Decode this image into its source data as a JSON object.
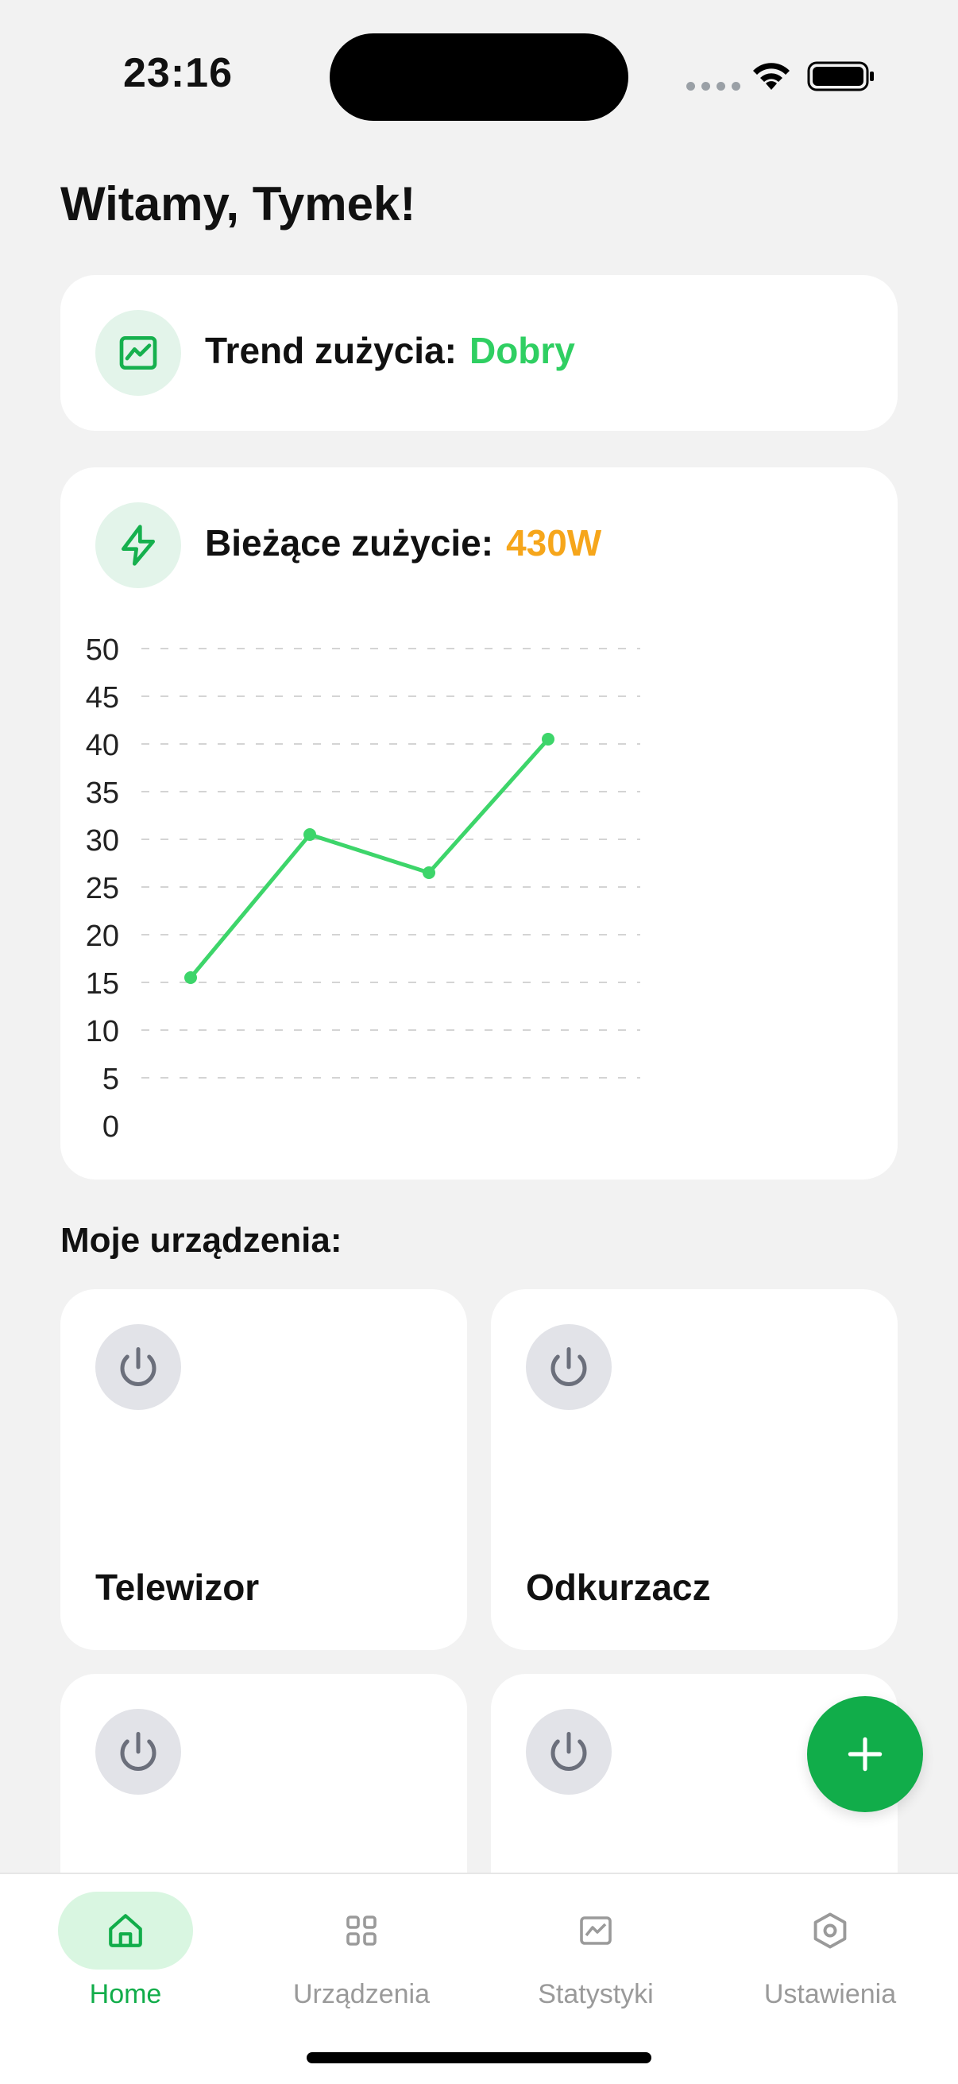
{
  "status_bar": {
    "time": "23:16"
  },
  "greeting": "Witamy, Tymek!",
  "trend": {
    "label": "Trend zużycia:",
    "value": "Dobry",
    "icon": "chart-icon",
    "value_color": "#2fcf62"
  },
  "usage": {
    "label": "Bieżące zużycie:",
    "value": "430W",
    "icon": "lightning-icon",
    "value_color": "#f6a61b"
  },
  "chart_data": {
    "type": "line",
    "x": [
      1,
      2,
      3,
      4
    ],
    "values": [
      15.5,
      30.5,
      26.5,
      40.5
    ],
    "y_ticks": [
      "50",
      "45",
      "40",
      "35",
      "30",
      "25",
      "20",
      "15",
      "10",
      "5",
      "0"
    ],
    "ylim": [
      0,
      50
    ],
    "grid": true,
    "line_color": "#3dd56a"
  },
  "devices": {
    "title": "Moje urządzenia:",
    "items": [
      {
        "name": "Telewizor",
        "icon": "power-icon"
      },
      {
        "name": "Odkurzacz",
        "icon": "power-icon"
      },
      {
        "name": "",
        "icon": "power-icon"
      },
      {
        "name": "",
        "icon": "power-icon"
      }
    ]
  },
  "fab": {
    "icon": "plus-icon"
  },
  "tabs": [
    {
      "label": "Home",
      "icon": "home-icon",
      "active": true
    },
    {
      "label": "Urządzenia",
      "icon": "grid-icon",
      "active": false
    },
    {
      "label": "Statystyki",
      "icon": "stats-icon",
      "active": false
    },
    {
      "label": "Ustawienia",
      "icon": "settings-icon",
      "active": false
    }
  ],
  "colors": {
    "accent": "#11ad4a",
    "background": "#f2f2f2"
  }
}
